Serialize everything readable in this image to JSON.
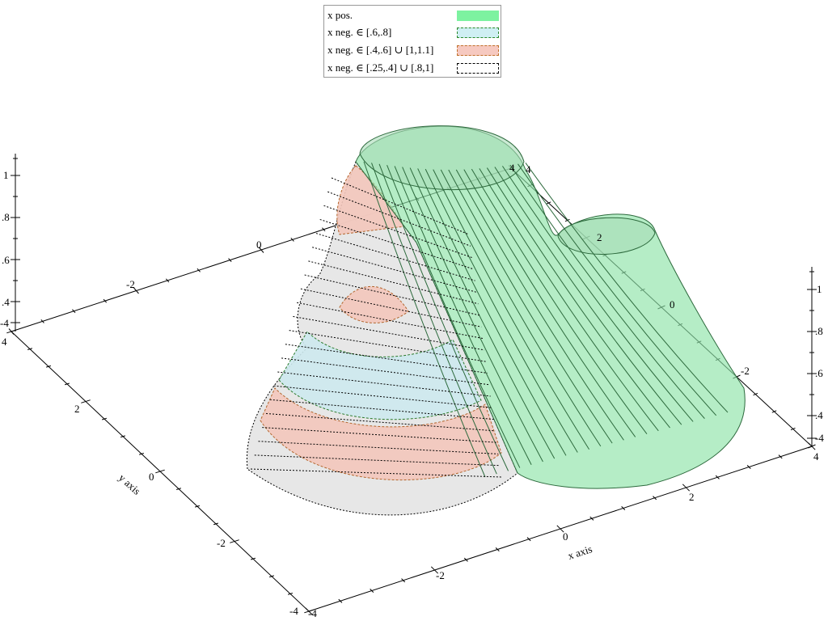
{
  "chart_data": {
    "type": "surface3d",
    "x_axis": {
      "label": "x axis",
      "range": [
        -4,
        4
      ],
      "ticks": [
        "-4",
        "-2",
        "0",
        "2",
        "4"
      ]
    },
    "y_axis": {
      "label": "y axis",
      "range": [
        -4,
        4
      ],
      "ticks": [
        "-4",
        "-2",
        "0",
        "2",
        "4"
      ]
    },
    "z_axis": {
      "label": "",
      "range": [
        0.3,
        1.1
      ],
      "ticks": [
        ".4",
        ".6",
        ".8",
        "1"
      ]
    },
    "back_y_ticks": [
      "4",
      "2",
      "0",
      "-2",
      "-4"
    ],
    "back_x_ticks": [
      "-2",
      "0",
      "4"
    ],
    "right_y_ticks": [
      "2",
      "0",
      "-2"
    ],
    "corner_ticks": [
      "4",
      "-4",
      "4",
      "-4"
    ],
    "legend": [
      {
        "label": "x pos.",
        "color": "#7df2a0",
        "border": "#7df2a0",
        "dash": "none"
      },
      {
        "label": "x neg. ∈ [.6,.8]",
        "color": "#cfeff3",
        "border": "#2a8a2a",
        "dash": "3,2"
      },
      {
        "label": "x neg. ∈ [.4,.6] ∪ [1,1.1]",
        "color": "#f6c9c0",
        "border": "#c0702a",
        "dash": "3,2"
      },
      {
        "label": "x neg. ∈ [.25,.4] ∪ [.8,1]",
        "color": "#ffffff",
        "border": "#000000",
        "dash": "2,2"
      }
    ],
    "series": [
      {
        "name": "x pos.",
        "fill": "#8ee4a8"
      },
      {
        "name": "x neg. ∈ [.6,.8]",
        "fill": "#cde9ee"
      },
      {
        "name": "x neg. ∈ [.4,.6] ∪ [1,1.1]",
        "fill": "#f3c6bb"
      },
      {
        "name": "x neg. ∈ [.25,.4] ∪ [.8,1]",
        "fill": "#e3e3e3"
      }
    ]
  }
}
